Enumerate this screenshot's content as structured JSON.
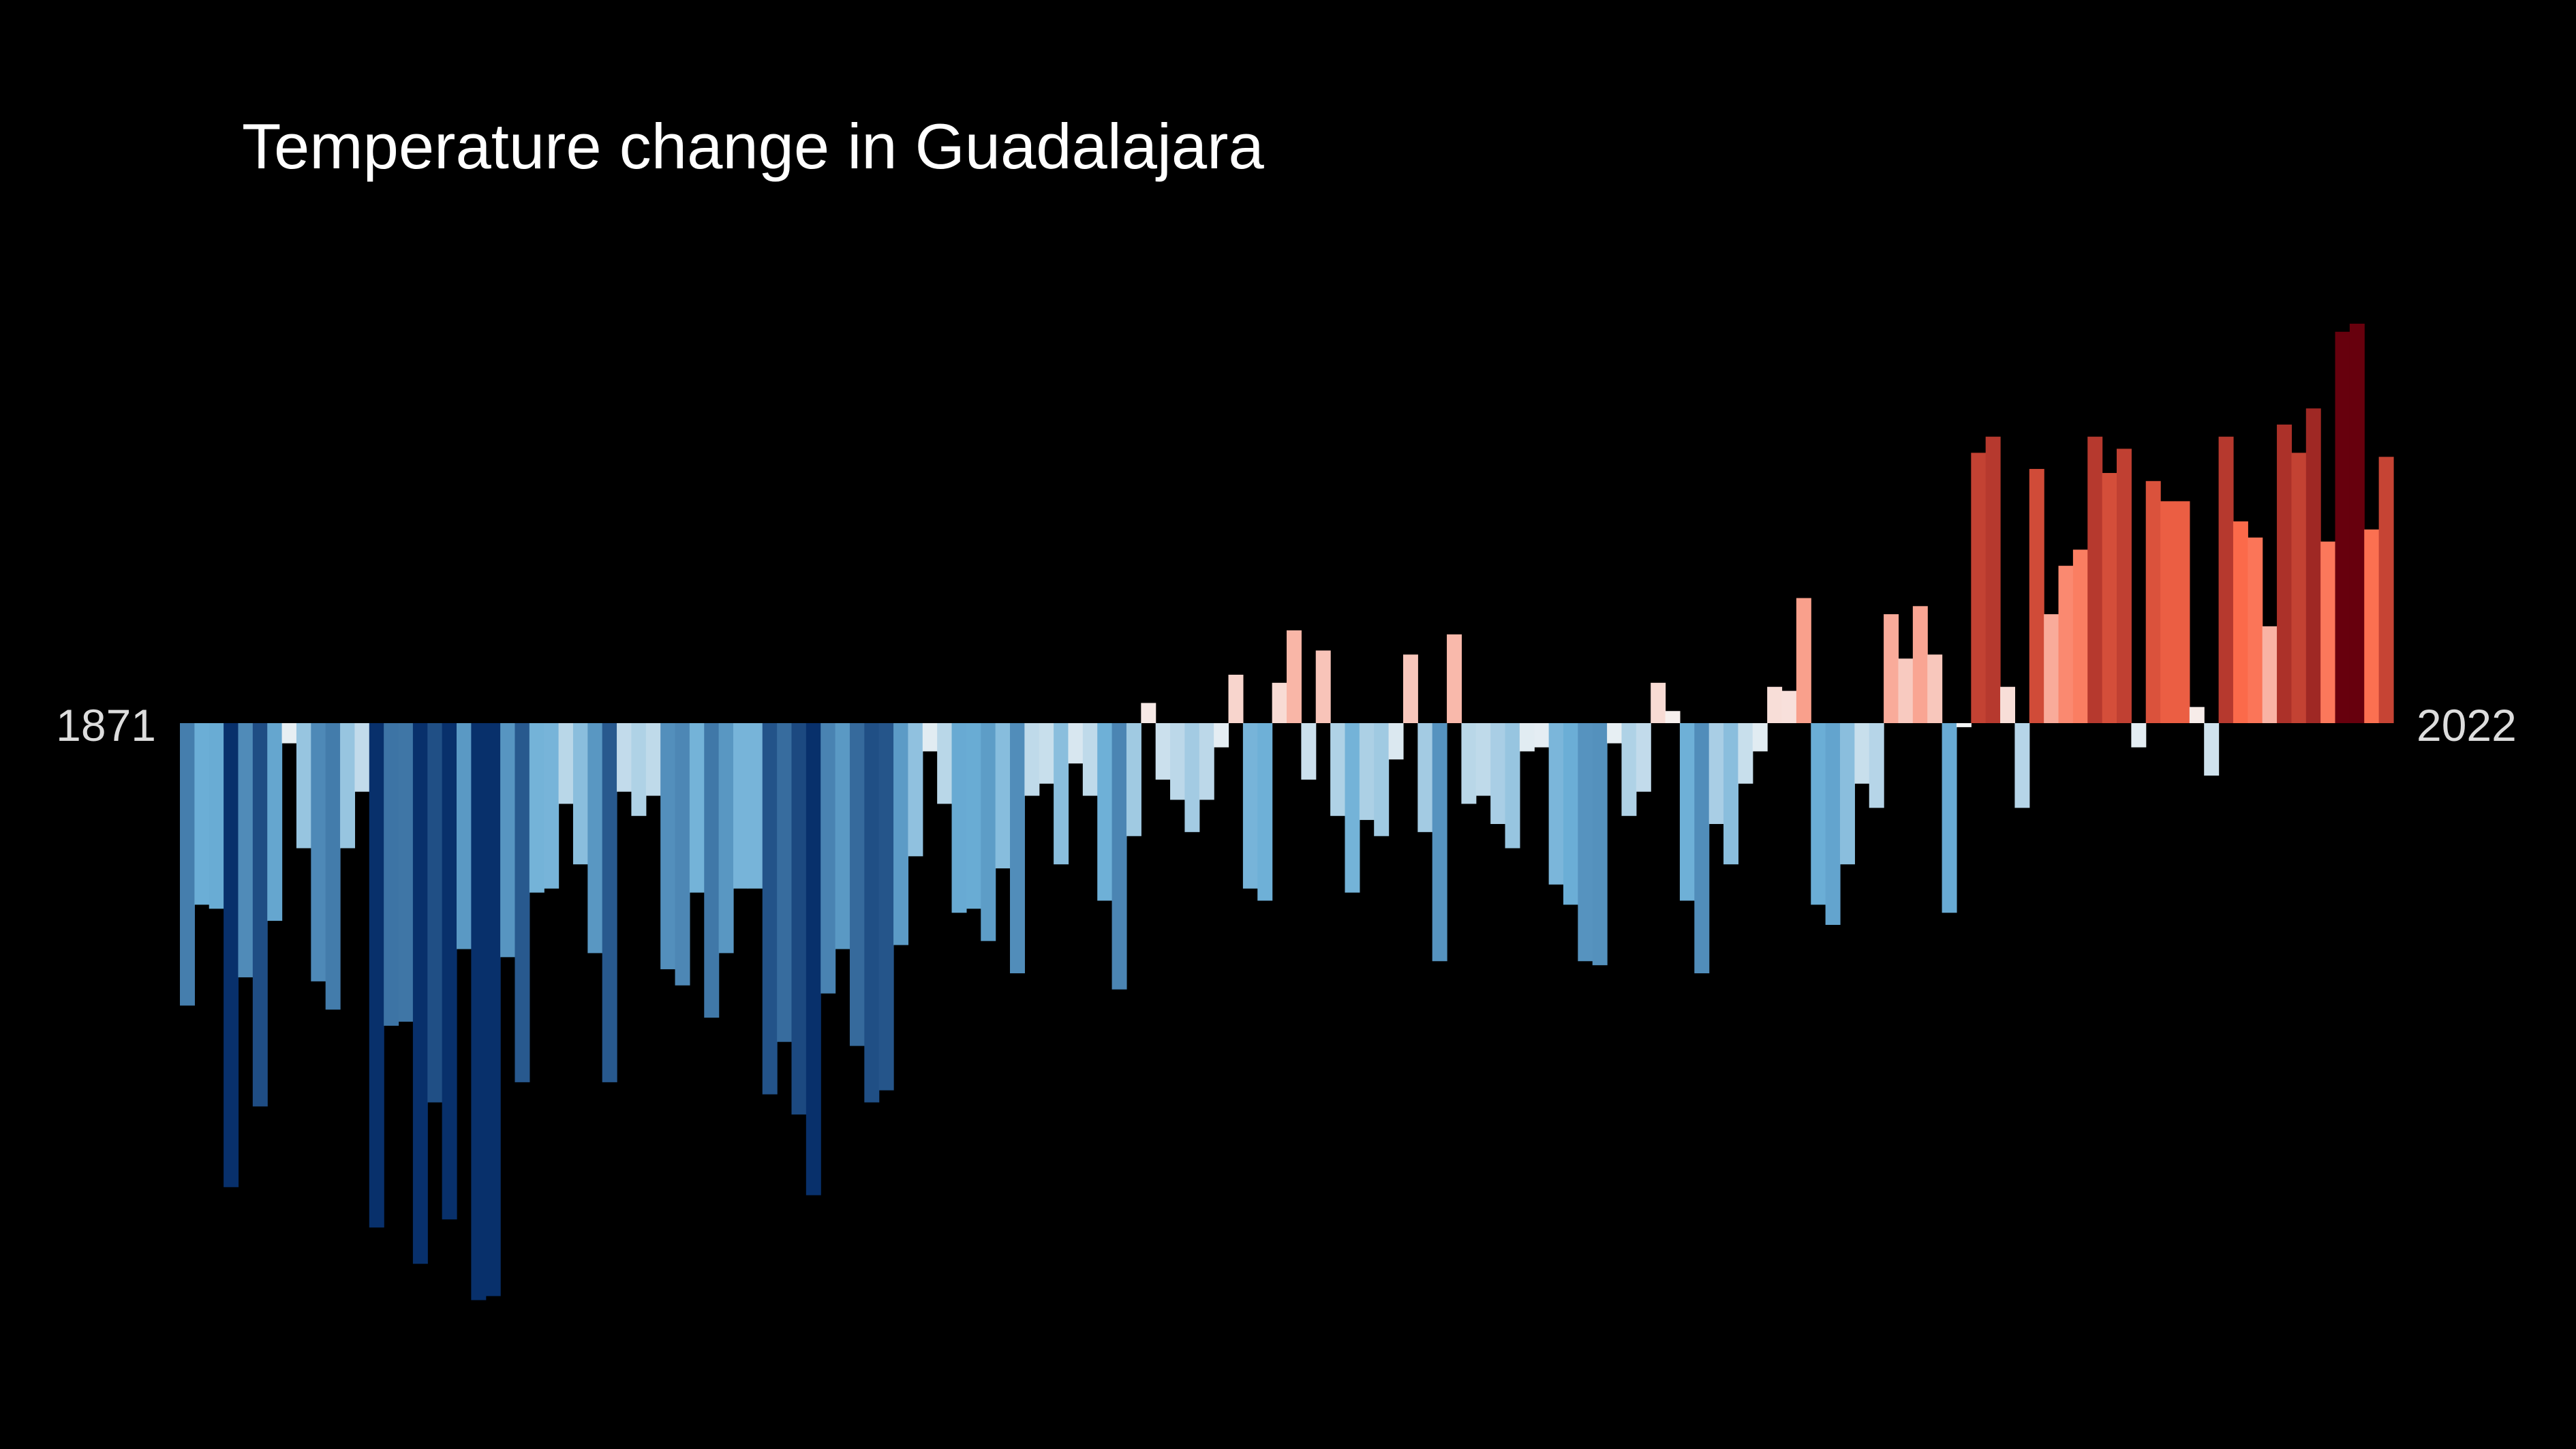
{
  "chart_data": {
    "type": "bar",
    "title": "Temperature change in Guadalajara",
    "xlabel": "",
    "ylabel": "",
    "start_year": "1871",
    "end_year": "2022",
    "x": [
      1871,
      1872,
      1873,
      1874,
      1875,
      1876,
      1877,
      1878,
      1879,
      1880,
      1881,
      1882,
      1883,
      1884,
      1885,
      1886,
      1887,
      1888,
      1889,
      1890,
      1891,
      1892,
      1893,
      1894,
      1895,
      1896,
      1897,
      1898,
      1899,
      1900,
      1901,
      1902,
      1903,
      1904,
      1905,
      1906,
      1907,
      1908,
      1909,
      1910,
      1911,
      1912,
      1913,
      1914,
      1915,
      1916,
      1917,
      1918,
      1919,
      1920,
      1921,
      1922,
      1923,
      1924,
      1925,
      1926,
      1927,
      1928,
      1929,
      1930,
      1931,
      1932,
      1933,
      1934,
      1935,
      1936,
      1937,
      1938,
      1939,
      1940,
      1941,
      1942,
      1943,
      1944,
      1945,
      1946,
      1947,
      1948,
      1949,
      1950,
      1951,
      1952,
      1953,
      1954,
      1955,
      1956,
      1957,
      1958,
      1959,
      1960,
      1961,
      1962,
      1963,
      1964,
      1965,
      1966,
      1967,
      1968,
      1969,
      1970,
      1971,
      1972,
      1973,
      1974,
      1975,
      1976,
      1977,
      1978,
      1979,
      1980,
      1981,
      1982,
      1983,
      1984,
      1985,
      1986,
      1987,
      1988,
      1989,
      1990,
      1991,
      1992,
      1993,
      1994,
      1995,
      1996,
      1997,
      1998,
      1999,
      2000,
      2001,
      2002,
      2003,
      2004,
      2005,
      2006,
      2007,
      2008,
      2009,
      2010,
      2011,
      2012,
      2013,
      2014,
      2015,
      2016,
      2017,
      2018,
      2019,
      2020,
      2021,
      2022
    ],
    "values": [
      -0.7,
      -0.45,
      -0.46,
      -1.15,
      -0.63,
      -0.95,
      -0.49,
      -0.05,
      -0.31,
      -0.64,
      -0.71,
      -0.31,
      -0.17,
      -1.25,
      -0.75,
      -0.74,
      -1.34,
      -0.94,
      -1.23,
      -0.56,
      -1.43,
      -1.42,
      -0.58,
      -0.89,
      -0.42,
      -0.41,
      -0.2,
      -0.35,
      -0.57,
      -0.89,
      -0.17,
      -0.23,
      -0.18,
      -0.61,
      -0.65,
      -0.42,
      -0.73,
      -0.57,
      -0.41,
      -0.41,
      -0.92,
      -0.79,
      -0.97,
      -1.17,
      -0.67,
      -0.56,
      -0.8,
      -0.94,
      -0.91,
      -0.55,
      -0.33,
      -0.07,
      -0.2,
      -0.47,
      -0.46,
      -0.54,
      -0.36,
      -0.62,
      -0.18,
      -0.15,
      -0.35,
      -0.1,
      -0.18,
      -0.44,
      -0.66,
      -0.28,
      0.05,
      -0.14,
      -0.19,
      -0.27,
      -0.19,
      -0.06,
      0.12,
      -0.41,
      -0.44,
      0.1,
      0.23,
      -0.14,
      0.18,
      -0.23,
      -0.42,
      -0.24,
      -0.28,
      -0.09,
      0.17,
      -0.27,
      -0.59,
      0.22,
      -0.2,
      -0.18,
      -0.25,
      -0.31,
      -0.07,
      -0.06,
      -0.4,
      -0.45,
      -0.59,
      -0.6,
      -0.05,
      -0.23,
      -0.17,
      0.1,
      0.03,
      -0.44,
      -0.62,
      -0.25,
      -0.35,
      -0.15,
      -0.07,
      0.09,
      0.08,
      0.31,
      -0.45,
      -0.5,
      -0.35,
      -0.15,
      -0.21,
      0.27,
      0.16,
      0.29,
      0.17,
      -0.47,
      -0.01,
      0.67,
      0.71,
      0.09,
      -0.21,
      0.63,
      0.27,
      0.39,
      0.43,
      0.71,
      0.62,
      0.68,
      -0.06,
      0.6,
      0.55,
      0.55,
      0.04,
      -0.13,
      0.71,
      0.5,
      0.46,
      0.24,
      0.74,
      0.67,
      0.78,
      0.45,
      0.97,
      0.99,
      0.48,
      0.66
    ],
    "color_scale": {
      "cold": "#08306b",
      "mid_cold": "#6baed6",
      "neutral": "#f7f7f7",
      "mid_warm": "#fb6a4a",
      "warm": "#67000d"
    },
    "ylim": [
      -1.6,
      1.1
    ],
    "grid": false,
    "legend": "none"
  }
}
